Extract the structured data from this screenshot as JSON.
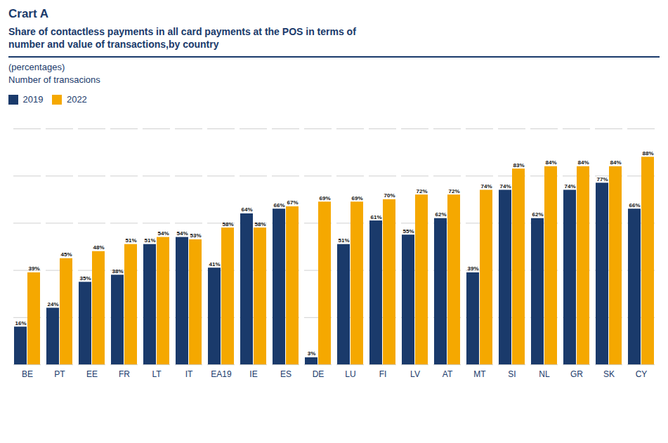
{
  "chart_data": {
    "type": "bar",
    "title": "Crart A",
    "subtitle": "Share of contactless payments in all card payments at the POS in terms of\nnumber and value of transactions,by country",
    "annotations": [
      "(percentages)",
      "Number of transacions"
    ],
    "categories": [
      "BE",
      "PT",
      "EE",
      "FR",
      "LT",
      "IT",
      "EA19",
      "IE",
      "ES",
      "DE",
      "LU",
      "FI",
      "LV",
      "AT",
      "MT",
      "SI",
      "NL",
      "GR",
      "SK",
      "CY"
    ],
    "series": [
      {
        "name": "2019",
        "color": "#1a3a6b",
        "values": [
          16,
          24,
          35,
          38,
          51,
          54,
          41,
          64,
          66,
          3,
          51,
          61,
          55,
          62,
          39,
          74,
          62,
          74,
          77,
          66
        ],
        "value_labels": [
          "16%",
          "24%",
          "35%",
          "38%",
          "51%",
          "54%",
          "41%",
          "64%",
          "66%",
          "3%",
          "51%",
          "61%",
          "55%",
          "62%",
          "39%",
          "74%",
          "62%",
          "74%",
          "77%",
          "66%"
        ]
      },
      {
        "name": "2022",
        "color": "#f5a800",
        "values": [
          39,
          45,
          48,
          51,
          54,
          53,
          58,
          58,
          67,
          69,
          69,
          70,
          72,
          72,
          74,
          83,
          84,
          84,
          84,
          88
        ],
        "value_labels": [
          "39%",
          "45%",
          "48%",
          "51%",
          "54%",
          "53%",
          "58%",
          "58%",
          "67%",
          "69%",
          "69%",
          "70%",
          "72%",
          "72%",
          "74%",
          "83%",
          "84%",
          "84%",
          "84%",
          "88%"
        ]
      }
    ],
    "ylim": [
      0,
      100
    ],
    "yticks": [
      0,
      20,
      40,
      60,
      80,
      100
    ],
    "grid": true,
    "legend": "upper left",
    "data_labels": true,
    "tick_labels": "x"
  }
}
